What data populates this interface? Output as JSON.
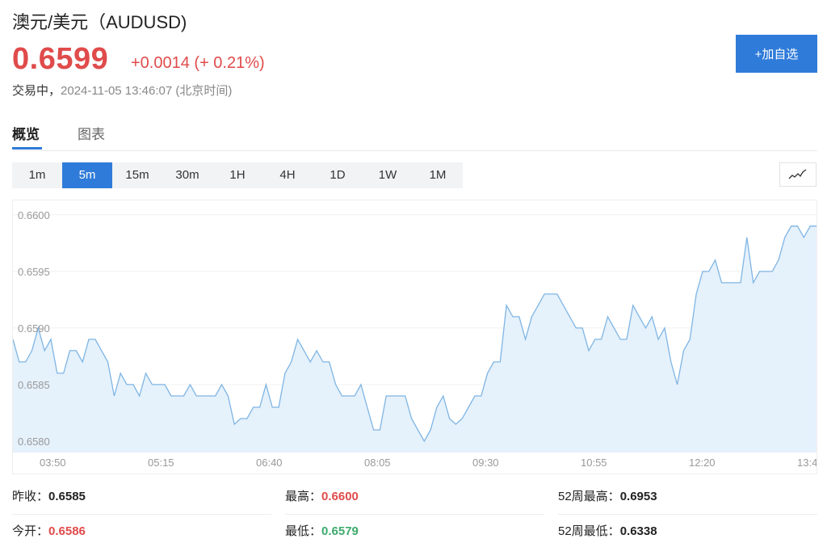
{
  "header": {
    "title": "澳元/美元（AUDUSD)",
    "price": "0.6599",
    "change": "+0.0014 (+ 0.21%)",
    "status_label": "交易中，",
    "timestamp": "2024-11-05 13:46:07 (北京时间)",
    "add_button": "+加自选"
  },
  "colors": {
    "up": "#e04b4b",
    "down": "#3daa6c",
    "accent": "#2f7bd9",
    "line": "#7fb5e4",
    "fill": "#e5f1fb"
  },
  "tabs": [
    {
      "label": "概览",
      "active": true
    },
    {
      "label": "图表",
      "active": false
    }
  ],
  "intervals": [
    "1m",
    "5m",
    "15m",
    "30m",
    "1H",
    "4H",
    "1D",
    "1W",
    "1M"
  ],
  "active_interval": "5m",
  "chart_type_icon": "line-chart-icon",
  "chart_data": {
    "type": "area",
    "ylim": [
      0.6579,
      0.66007
    ],
    "yticks": [
      "0.6600",
      "0.6595",
      "0.6590",
      "0.6585",
      "0.6580"
    ],
    "xticks": [
      "03:50",
      "05:15",
      "06:40",
      "08:05",
      "09:30",
      "10:55",
      "12:20",
      "13:4"
    ],
    "grid": true,
    "series": [
      {
        "values": [
          0.6589,
          0.6587,
          0.6587,
          0.6588,
          0.659,
          0.6588,
          0.6589,
          0.6586,
          0.6586,
          0.6588,
          0.6588,
          0.6587,
          0.6589,
          0.6589,
          0.6588,
          0.6587,
          0.6584,
          0.6586,
          0.6585,
          0.6585,
          0.6584,
          0.6586,
          0.6585,
          0.6585,
          0.6585,
          0.6584,
          0.6584,
          0.6584,
          0.6585,
          0.6584,
          0.6584,
          0.6584,
          0.6584,
          0.6585,
          0.6584,
          0.65815,
          0.6582,
          0.6582,
          0.6583,
          0.6583,
          0.6585,
          0.6583,
          0.6583,
          0.6586,
          0.6587,
          0.6589,
          0.6588,
          0.6587,
          0.6588,
          0.6587,
          0.6587,
          0.6585,
          0.6584,
          0.6584,
          0.6584,
          0.6585,
          0.6583,
          0.6581,
          0.6581,
          0.6584,
          0.6584,
          0.6584,
          0.6584,
          0.6582,
          0.6581,
          0.658,
          0.6581,
          0.6583,
          0.6584,
          0.6582,
          0.65815,
          0.6582,
          0.6583,
          0.6584,
          0.6584,
          0.6586,
          0.6587,
          0.6587,
          0.6592,
          0.6591,
          0.6591,
          0.6589,
          0.6591,
          0.6592,
          0.6593,
          0.6593,
          0.6593,
          0.6592,
          0.6591,
          0.659,
          0.659,
          0.6588,
          0.6589,
          0.6589,
          0.6591,
          0.659,
          0.6589,
          0.6589,
          0.6592,
          0.6591,
          0.659,
          0.6591,
          0.6589,
          0.659,
          0.6587,
          0.6585,
          0.6588,
          0.6589,
          0.6593,
          0.6595,
          0.6595,
          0.6596,
          0.6594,
          0.6594,
          0.6594,
          0.6594,
          0.6598,
          0.6594,
          0.6595,
          0.6595,
          0.6595,
          0.6596,
          0.6598,
          0.6599,
          0.6599,
          0.6598,
          0.6599,
          0.6599
        ]
      }
    ]
  },
  "stats": {
    "prev_close_label": "昨收：",
    "prev_close": "0.6585",
    "high_label": "最高：",
    "high": "0.6600",
    "wk52_high_label": "52周最高：",
    "wk52_high": "0.6953",
    "open_label": "今开：",
    "open": "0.6586",
    "low_label": "最低：",
    "low": "0.6579",
    "wk52_low_label": "52周最低：",
    "wk52_low": "0.6338"
  }
}
